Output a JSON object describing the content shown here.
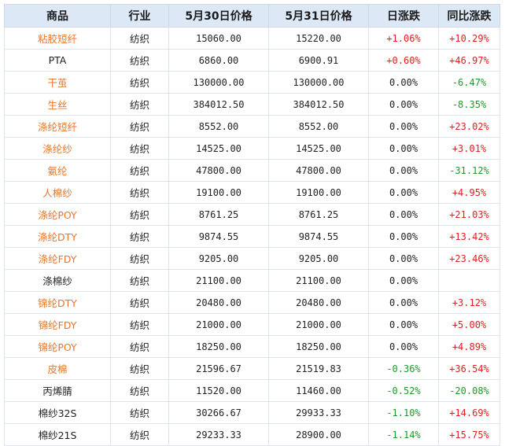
{
  "headers": [
    "商品",
    "行业",
    "5月30日价格",
    "5月31日价格",
    "日涨跌",
    "同比涨跌"
  ],
  "rows": [
    {
      "name": "粘胶短纤",
      "link": true,
      "industry": "纺织",
      "p1": "15060.00",
      "p2": "15220.00",
      "day": "+1.06%",
      "yoy": "+10.29%"
    },
    {
      "name": "PTA",
      "link": false,
      "industry": "纺织",
      "p1": "6860.00",
      "p2": "6900.91",
      "day": "+0.60%",
      "yoy": "+46.97%"
    },
    {
      "name": "干茧",
      "link": true,
      "industry": "纺织",
      "p1": "130000.00",
      "p2": "130000.00",
      "day": "0.00%",
      "yoy": "-6.47%"
    },
    {
      "name": "生丝",
      "link": true,
      "industry": "纺织",
      "p1": "384012.50",
      "p2": "384012.50",
      "day": "0.00%",
      "yoy": "-8.35%"
    },
    {
      "name": "涤纶短纤",
      "link": true,
      "industry": "纺织",
      "p1": "8552.00",
      "p2": "8552.00",
      "day": "0.00%",
      "yoy": "+23.02%"
    },
    {
      "name": "涤纶纱",
      "link": true,
      "industry": "纺织",
      "p1": "14525.00",
      "p2": "14525.00",
      "day": "0.00%",
      "yoy": "+3.01%"
    },
    {
      "name": "氨纶",
      "link": true,
      "industry": "纺织",
      "p1": "47800.00",
      "p2": "47800.00",
      "day": "0.00%",
      "yoy": "-31.12%"
    },
    {
      "name": "人棉纱",
      "link": true,
      "industry": "纺织",
      "p1": "19100.00",
      "p2": "19100.00",
      "day": "0.00%",
      "yoy": "+4.95%"
    },
    {
      "name": "涤纶POY",
      "link": true,
      "industry": "纺织",
      "p1": "8761.25",
      "p2": "8761.25",
      "day": "0.00%",
      "yoy": "+21.03%"
    },
    {
      "name": "涤纶DTY",
      "link": true,
      "industry": "纺织",
      "p1": "9874.55",
      "p2": "9874.55",
      "day": "0.00%",
      "yoy": "+13.42%"
    },
    {
      "name": "涤纶FDY",
      "link": true,
      "industry": "纺织",
      "p1": "9205.00",
      "p2": "9205.00",
      "day": "0.00%",
      "yoy": "+23.46%"
    },
    {
      "name": "涤棉纱",
      "link": false,
      "industry": "纺织",
      "p1": "21100.00",
      "p2": "21100.00",
      "day": "0.00%",
      "yoy": ""
    },
    {
      "name": "锦纶DTY",
      "link": true,
      "industry": "纺织",
      "p1": "20480.00",
      "p2": "20480.00",
      "day": "0.00%",
      "yoy": "+3.12%"
    },
    {
      "name": "锦纶FDY",
      "link": true,
      "industry": "纺织",
      "p1": "21000.00",
      "p2": "21000.00",
      "day": "0.00%",
      "yoy": "+5.00%"
    },
    {
      "name": "锦纶POY",
      "link": true,
      "industry": "纺织",
      "p1": "18250.00",
      "p2": "18250.00",
      "day": "0.00%",
      "yoy": "+4.89%"
    },
    {
      "name": "皮棉",
      "link": true,
      "industry": "纺织",
      "p1": "21596.67",
      "p2": "21519.83",
      "day": "-0.36%",
      "yoy": "+36.54%"
    },
    {
      "name": "丙烯腈",
      "link": false,
      "industry": "纺织",
      "p1": "11520.00",
      "p2": "11460.00",
      "day": "-0.52%",
      "yoy": "-20.08%"
    },
    {
      "name": "棉纱32S",
      "link": false,
      "industry": "纺织",
      "p1": "30266.67",
      "p2": "29933.33",
      "day": "-1.10%",
      "yoy": "+14.69%"
    },
    {
      "name": "棉纱21S",
      "link": false,
      "industry": "纺织",
      "p1": "29233.33",
      "p2": "28900.00",
      "day": "-1.14%",
      "yoy": "+15.75%"
    }
  ],
  "colors": {
    "link": "#e8762c",
    "up": "#e02020",
    "down": "#1f9a2a",
    "header_bg": "#dde8f6"
  }
}
